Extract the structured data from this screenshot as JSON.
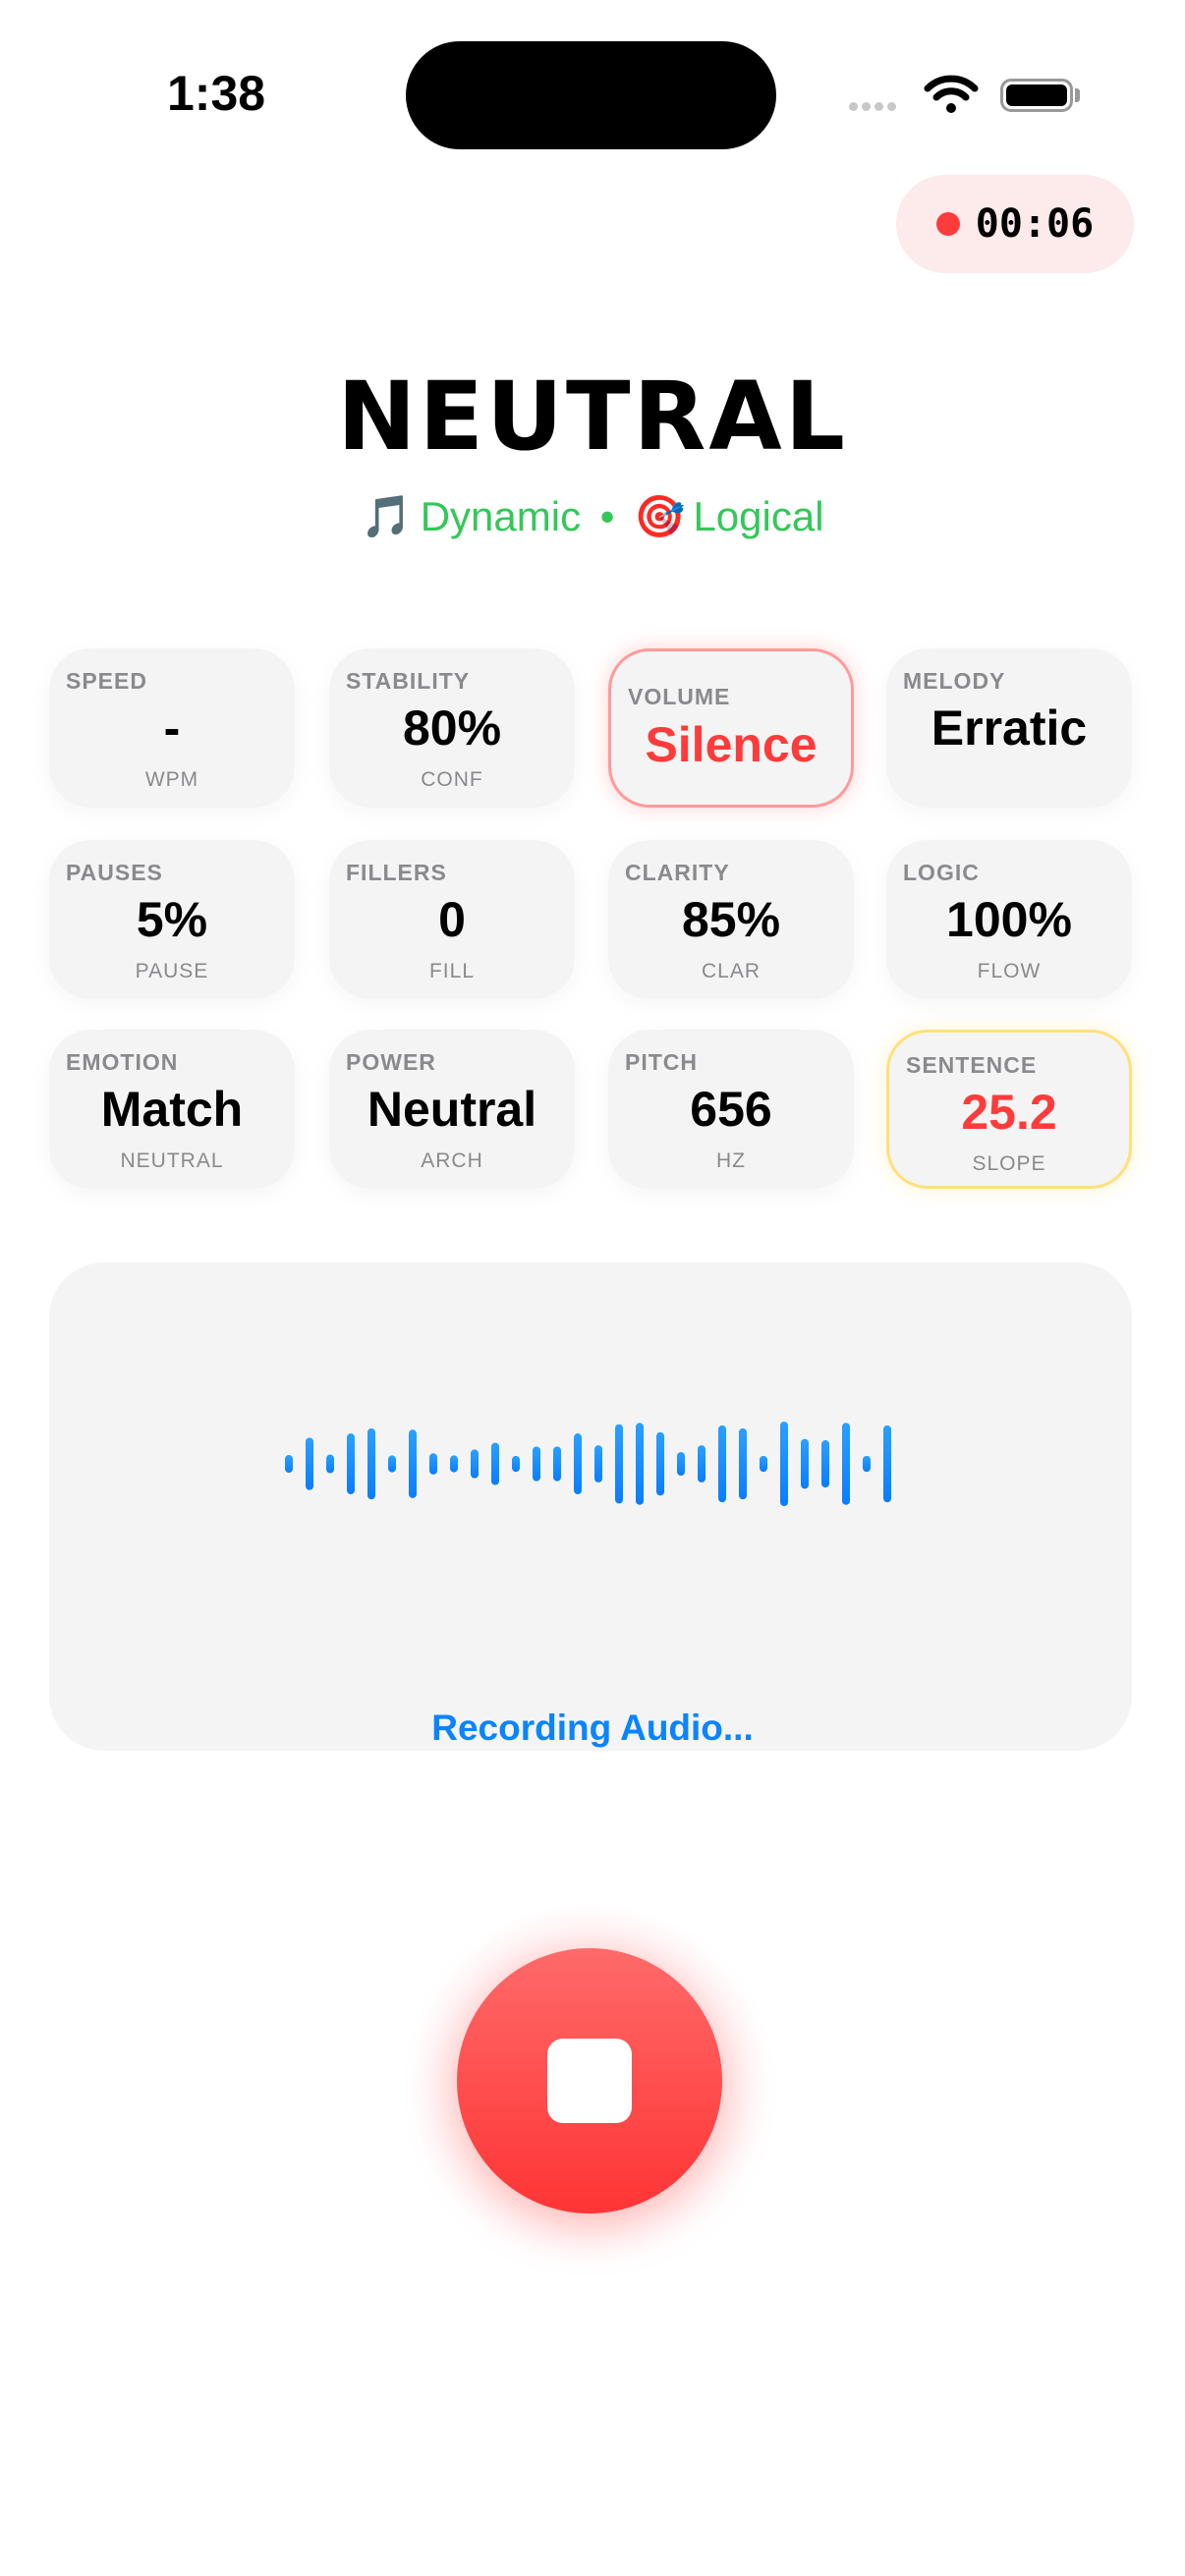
{
  "status_bar": {
    "time": "1:38",
    "icons": [
      "cellular-icon",
      "wifi-icon",
      "battery-icon"
    ]
  },
  "timer": {
    "elapsed": "00:06",
    "color": "#ff3b3b"
  },
  "header": {
    "title": "NEUTRAL",
    "tags": [
      {
        "emoji": "🎵",
        "label": "Dynamic"
      },
      {
        "separator": "•"
      },
      {
        "emoji": "🎯",
        "label": "Logical"
      }
    ],
    "tag_color": "#34c759"
  },
  "metrics": [
    {
      "label": "SPEED",
      "value": "-",
      "unit": "WPM",
      "state": "normal"
    },
    {
      "label": "STABILITY",
      "value": "80%",
      "unit": "CONF",
      "state": "normal"
    },
    {
      "label": "VOLUME",
      "value": "Silence",
      "unit": "",
      "state": "alert"
    },
    {
      "label": "MELODY",
      "value": "Erratic",
      "unit": "",
      "state": "normal"
    },
    {
      "label": "PAUSES",
      "value": "5%",
      "unit": "PAUSE",
      "state": "normal"
    },
    {
      "label": "FILLERS",
      "value": "0",
      "unit": "FILL",
      "state": "normal"
    },
    {
      "label": "CLARITY",
      "value": "85%",
      "unit": "CLAR",
      "state": "normal"
    },
    {
      "label": "LOGIC",
      "value": "100%",
      "unit": "FLOW",
      "state": "normal"
    },
    {
      "label": "EMOTION",
      "value": "Match",
      "unit": "NEUTRAL",
      "state": "normal"
    },
    {
      "label": "POWER",
      "value": "Neutral",
      "unit": "ARCH",
      "state": "normal"
    },
    {
      "label": "PITCH",
      "value": "656",
      "unit": "HZ",
      "state": "normal"
    },
    {
      "label": "SENTENCE",
      "value": "25.2",
      "unit": "SLOPE",
      "state": "warning"
    }
  ],
  "colors": {
    "alert": "#ff3b3b",
    "warning_border": "#ffe07a",
    "accent": "#0a84ff"
  },
  "waveform": {
    "levels": [
      0.21,
      0.62,
      0.22,
      0.72,
      0.84,
      0.2,
      0.81,
      0.25,
      0.2,
      0.34,
      0.5,
      0.19,
      0.41,
      0.41,
      0.72,
      0.44,
      0.94,
      0.97,
      0.75,
      0.28,
      0.44,
      0.91,
      0.84,
      0.19,
      1.0,
      0.59,
      0.56,
      0.97,
      0.19,
      0.91
    ],
    "status": "Recording Audio..."
  },
  "controls": {
    "stop_icon": "stop-icon"
  }
}
